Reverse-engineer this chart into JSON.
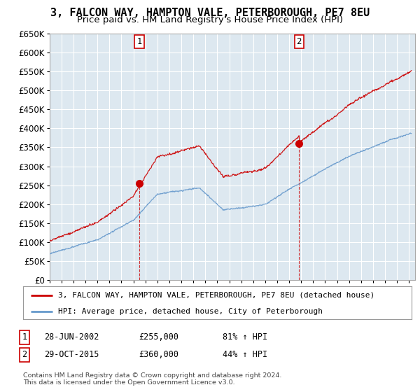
{
  "title": "3, FALCON WAY, HAMPTON VALE, PETERBOROUGH, PE7 8EU",
  "subtitle": "Price paid vs. HM Land Registry's House Price Index (HPI)",
  "ylim": [
    0,
    650000
  ],
  "yticks": [
    0,
    50000,
    100000,
    150000,
    200000,
    250000,
    300000,
    350000,
    400000,
    450000,
    500000,
    550000,
    600000,
    650000
  ],
  "xlim_start": 1995.0,
  "xlim_end": 2025.5,
  "line1_color": "#cc0000",
  "line2_color": "#6699cc",
  "chart_bg_color": "#dde8f0",
  "background_color": "#ffffff",
  "grid_color": "#ffffff",
  "sale1_x": 2002.487,
  "sale1_y": 255000,
  "sale2_x": 2015.831,
  "sale2_y": 360000,
  "legend_line1": "3, FALCON WAY, HAMPTON VALE, PETERBOROUGH, PE7 8EU (detached house)",
  "legend_line2": "HPI: Average price, detached house, City of Peterborough",
  "table_row1": [
    "1",
    "28-JUN-2002",
    "£255,000",
    "81% ↑ HPI"
  ],
  "table_row2": [
    "2",
    "29-OCT-2015",
    "£360,000",
    "44% ↑ HPI"
  ],
  "footnote": "Contains HM Land Registry data © Crown copyright and database right 2024.\nThis data is licensed under the Open Government Licence v3.0.",
  "title_fontsize": 11,
  "subtitle_fontsize": 9.5,
  "tick_fontsize": 8.5,
  "legend_fontsize": 8.5
}
